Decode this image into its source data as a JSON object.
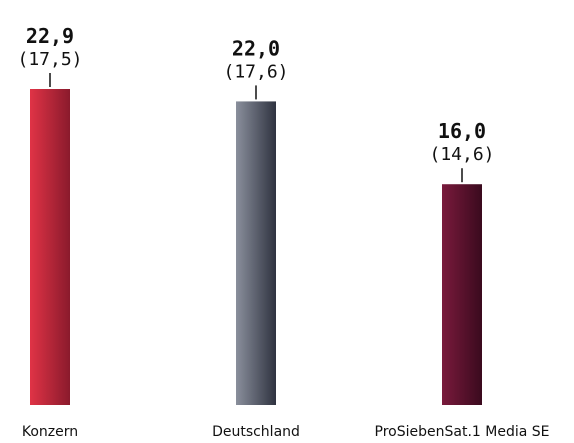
{
  "chart_data": {
    "type": "bar",
    "categories": [
      "Konzern",
      "Deutschland",
      "ProSiebenSat.1 Media SE"
    ],
    "series": [
      {
        "values": [
          22.9,
          22.0,
          16.0
        ],
        "value_labels": [
          "22,9",
          "22,0",
          "16,0"
        ]
      },
      {
        "values": [
          17.5,
          17.6,
          14.6
        ],
        "value_labels": [
          "(17,5)",
          "(17,6)",
          "(14,6)"
        ]
      }
    ],
    "bar_colors": [
      "#c8233a",
      "#5a5f6e",
      "#5c1230"
    ],
    "ylim": [
      0,
      25
    ],
    "grid": false,
    "legend": "none"
  }
}
